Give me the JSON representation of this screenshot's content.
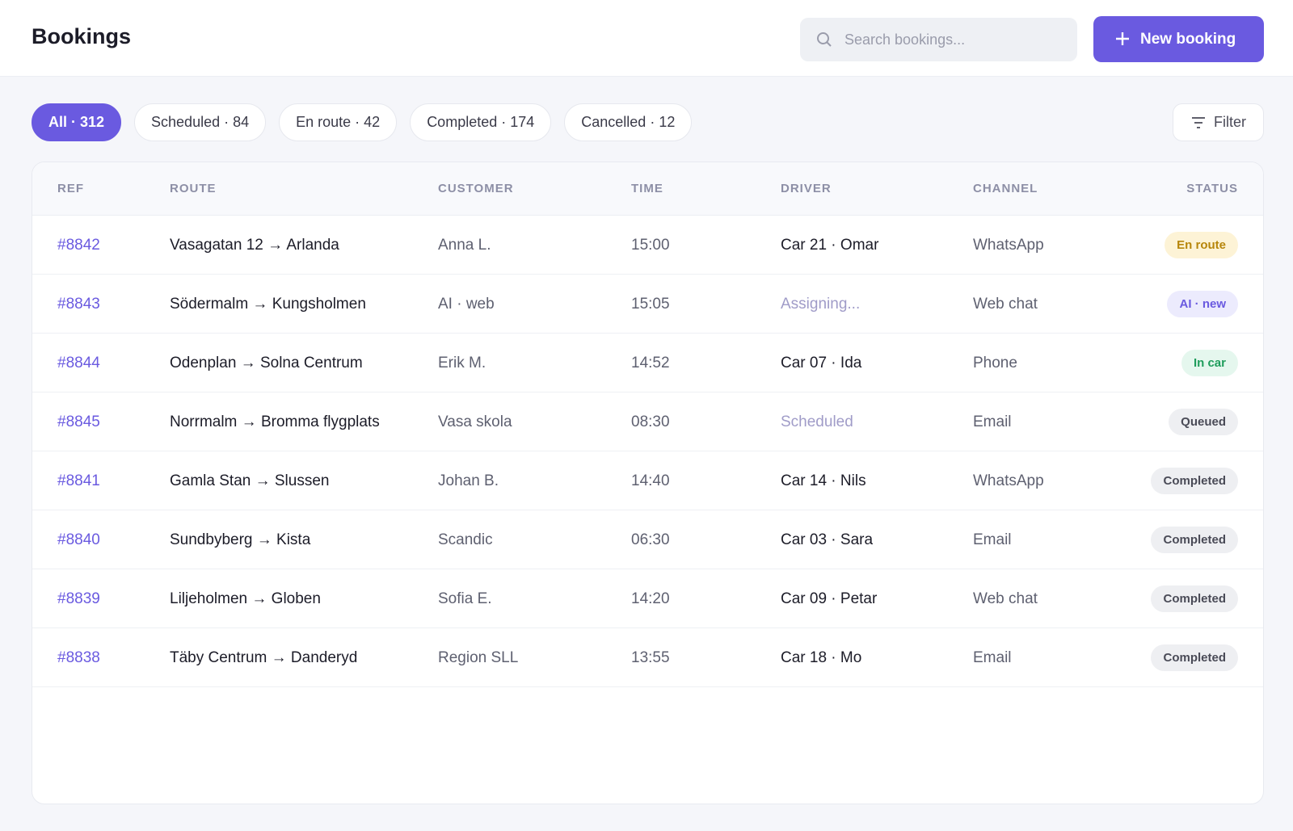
{
  "header": {
    "title": "Bookings",
    "search_placeholder": "Search bookings...",
    "new_button": "New booking"
  },
  "tabs": [
    "All · 312",
    "Scheduled · 84",
    "En route · 42",
    "Completed · 174",
    "Cancelled · 12"
  ],
  "filter": "Filter",
  "table": {
    "columns": [
      "REF",
      "ROUTE",
      "CUSTOMER",
      "TIME",
      "DRIVER",
      "CHANNEL",
      "STATUS"
    ],
    "rows": [
      [
        "#8842",
        "Vasagatan 12 → Arlanda",
        "Anna L.",
        "15:00",
        "Car 21 · Omar",
        "WhatsApp",
        "En route"
      ],
      [
        "#8843",
        "Södermalm → Kungsholmen",
        "AI · web",
        "15:05",
        "Assigning...",
        "Web chat",
        "AI · new"
      ],
      [
        "#8844",
        "Odenplan → Solna Centrum",
        "Erik M.",
        "14:52",
        "Car 07 · Ida",
        "Phone",
        "In car"
      ],
      [
        "#8845",
        "Norrmalm → Bromma flygplats",
        "Vasa skola",
        "08:30",
        "Scheduled",
        "Email",
        "Queued"
      ],
      [
        "#8841",
        "Gamla Stan → Slussen",
        "Johan B.",
        "14:40",
        "Car 14 · Nils",
        "WhatsApp",
        "Completed"
      ],
      [
        "#8840",
        "Sundbyberg → Kista",
        "Scandic",
        "06:30",
        "Car 03 · Sara",
        "Email",
        "Completed"
      ],
      [
        "#8839",
        "Liljeholmen → Globen",
        "Sofia E.",
        "14:20",
        "Car 09 · Petar",
        "Web chat",
        "Completed"
      ],
      [
        "#8838",
        "Täby Centrum → Danderyd",
        "Region SLL",
        "13:55",
        "Car 18 · Mo",
        "Email",
        "Completed"
      ]
    ]
  }
}
